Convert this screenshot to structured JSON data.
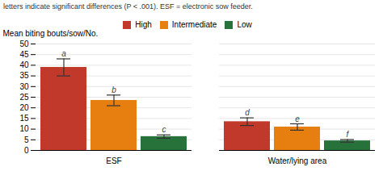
{
  "chart_data": {
    "type": "bar",
    "title": "letters indicate significant differences (P < .001). ESF = electronic sow feeder.",
    "categories": [
      "ESF",
      "Water/lying area"
    ],
    "series": [
      {
        "name": "High",
        "color": "#c0392b",
        "values": [
          39.0,
          13.5
        ],
        "errors": [
          4.0,
          1.8
        ],
        "annotations": [
          "a",
          "d"
        ]
      },
      {
        "name": "Intermediate",
        "color": "#e67e10",
        "values": [
          23.5,
          11.0
        ],
        "errors": [
          2.5,
          1.5
        ],
        "annotations": [
          "b",
          "e"
        ]
      },
      {
        "name": "Low",
        "color": "#27723a",
        "values": [
          6.5,
          4.5
        ],
        "errors": [
          0.8,
          0.6
        ],
        "annotations": [
          "c",
          "f"
        ]
      }
    ],
    "ylabel": "Mean biting bouts/sow/No.",
    "ylim": [
      0,
      50
    ],
    "yticks": [
      0,
      5,
      10,
      15,
      20,
      25,
      30,
      35,
      40,
      45,
      50
    ],
    "grid": true,
    "legend": "top"
  }
}
